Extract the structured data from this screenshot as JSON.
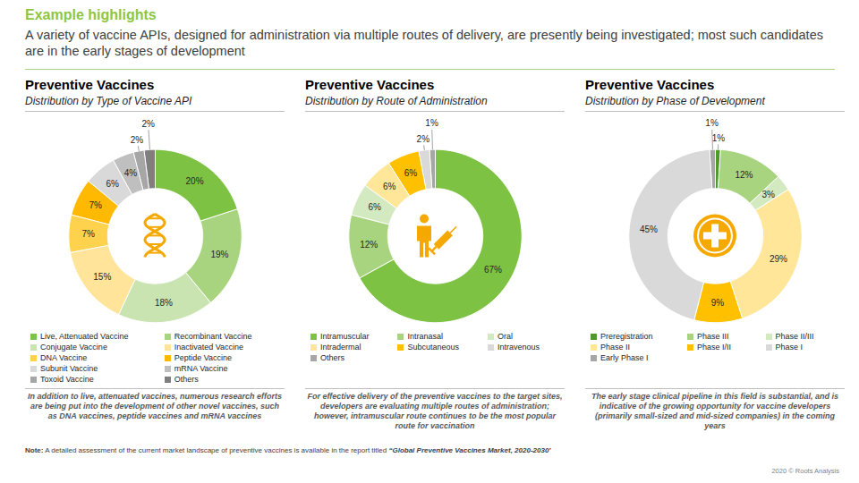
{
  "header": {
    "title": "Example highlights",
    "subtitle": "A variety of vaccine APIs, designed for administration via multiple routes of delivery, are presently being investigated; most such candidates are in the early stages of development"
  },
  "chart_data": [
    {
      "type": "donut",
      "title": "Preventive Vaccines",
      "subtitle": "Distribution by Type of Vaccine API",
      "categories": [
        "Live, Attenuated Vaccine",
        "Recombinant Vaccine",
        "Conjugate Vaccine",
        "Inactivated Vaccine",
        "DNA Vaccine",
        "Peptide Vaccine",
        "Subunit Vaccine",
        "mRNA Vaccine",
        "Toxoid Vaccine",
        "Others"
      ],
      "values": [
        20,
        19,
        18,
        15,
        7,
        7,
        6,
        4,
        2,
        2
      ],
      "value_labels": [
        "20%",
        "19%",
        "18%",
        "15%",
        "7%",
        "7%",
        "6%",
        "4%",
        "2%",
        "2%"
      ],
      "colors": [
        "#7dc242",
        "#a9d47f",
        "#c9e3b1",
        "#ffe49a",
        "#ffd24d",
        "#ffb900",
        "#d9d9d9",
        "#bfbfbf",
        "#a6a6a6",
        "#7f7f7f"
      ],
      "data_labels": true,
      "legend": "bottom",
      "caption": "In addition to live, attenuated vaccines, numerous research efforts are being put into the development of other novel vaccines, such as DNA vaccines, peptide vaccines and mRNA vaccines"
    },
    {
      "type": "donut",
      "title": "Preventive Vaccines",
      "subtitle": "Distribution by Route of Administration",
      "categories": [
        "Intramuscular",
        "Intranasal",
        "Oral",
        "Intradermal",
        "Subcutaneous",
        "Intravenous",
        "Others"
      ],
      "values": [
        67,
        12,
        6,
        6,
        6,
        2,
        1
      ],
      "value_labels": [
        "67%",
        "12%",
        "6%",
        "6%",
        "6%",
        "2%",
        "1%"
      ],
      "colors": [
        "#7dc242",
        "#a9d47f",
        "#d3eac0",
        "#ffe699",
        "#ffc000",
        "#d9d9d9",
        "#a6a6a6"
      ],
      "data_labels": true,
      "legend": "bottom",
      "caption": "For effective delivery of the preventive vaccines to the target sites, developers are evaluating multiple routes of administration; however, intramuscular route continues to be the most popular route for vaccination"
    },
    {
      "type": "donut",
      "title": "Preventive Vaccines",
      "subtitle": "Distribution by Phase of Development",
      "categories": [
        "Preregistration",
        "Phase III",
        "Phase II/III",
        "Phase II",
        "Phase I/II",
        "Phase I",
        "Early Phase I"
      ],
      "values": [
        1,
        12,
        3,
        29,
        9,
        45,
        1
      ],
      "value_labels": [
        "1%",
        "12%",
        "3%",
        "29%",
        "9%",
        "45%",
        "1%"
      ],
      "colors": [
        "#4e9a2a",
        "#a9d47f",
        "#d3eac0",
        "#ffe699",
        "#ffc000",
        "#d9d9d9",
        "#a6a6a6"
      ],
      "data_labels": true,
      "legend": "bottom",
      "caption": "The early stage clinical pipeline in this field is substantial, and is indicative of the growing opportunity for vaccine developers (primarily small-sized and mid-sized companies) in the coming years"
    }
  ],
  "note": {
    "label": "Note:",
    "text": "A detailed assessment of the current market landscape of preventive vaccines is available in the report titled ",
    "report": "“Global Preventive Vaccines Market, 2020-2030’"
  },
  "footer": "2020 © Roots Analysis"
}
